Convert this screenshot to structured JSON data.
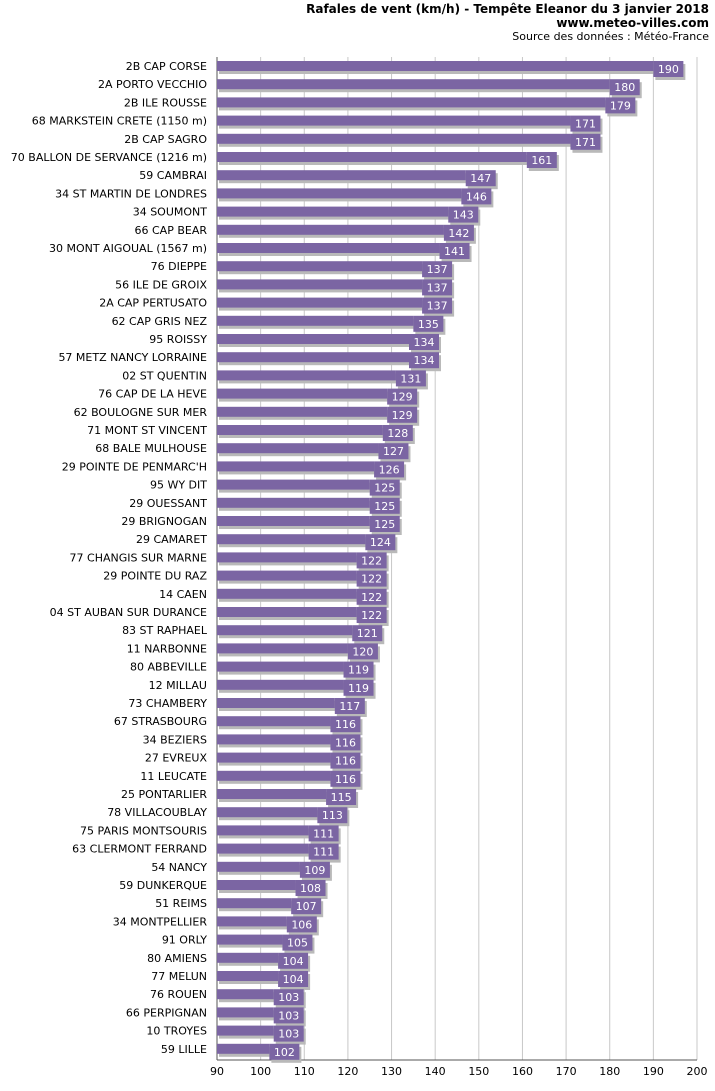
{
  "header": {
    "title": "Rafales de vent (km/h) - Tempête Eleanor du 3 janvier 2018",
    "site": "www.meteo-villes.com",
    "source": "Source des données : Météo-France"
  },
  "colors": {
    "bar": "#7b65a3",
    "bar_shadow": "#b9b9b9",
    "grid": "#c8c8c8",
    "axis": "#555555"
  },
  "chart_data": {
    "type": "bar",
    "orientation": "horizontal",
    "title": "Rafales de vent (km/h) - Tempête Eleanor du 3 janvier 2018",
    "xlim": [
      90,
      200
    ],
    "xticks": [
      90,
      100,
      110,
      120,
      130,
      140,
      150,
      160,
      170,
      180,
      190,
      200
    ],
    "grid": true,
    "categories": [
      "2B CAP CORSE",
      "2A PORTO VECCHIO",
      "2B ILE ROUSSE",
      "68 MARKSTEIN CRETE (1150 m)",
      "2B CAP SAGRO",
      "70 BALLON DE SERVANCE (1216 m)",
      "59 CAMBRAI",
      "34 ST MARTIN DE LONDRES",
      "34 SOUMONT",
      "66 CAP BEAR",
      "30 MONT AIGOUAL (1567 m)",
      "76 DIEPPE",
      "56 ILE DE GROIX",
      "2A CAP PERTUSATO",
      "62 CAP GRIS NEZ",
      "95 ROISSY",
      "57 METZ NANCY LORRAINE",
      "02 ST QUENTIN",
      "76 CAP DE LA HEVE",
      "62 BOULOGNE SUR MER",
      "71 MONT ST VINCENT",
      "68 BALE MULHOUSE",
      "29 POINTE DE PENMARC'H",
      "95 WY DIT",
      "29 OUESSANT",
      "29 BRIGNOGAN",
      "29 CAMARET",
      "77 CHANGIS SUR MARNE",
      "29 POINTE DU RAZ",
      "14 CAEN",
      "04 ST AUBAN SUR DURANCE",
      "83 ST RAPHAEL",
      "11 NARBONNE",
      "80 ABBEVILLE",
      "12 MILLAU",
      "73 CHAMBERY",
      "67 STRASBOURG",
      "34 BEZIERS",
      "27 EVREUX",
      "11 LEUCATE",
      "25 PONTARLIER",
      "78 VILLACOUBLAY",
      "75 PARIS MONTSOURIS",
      "63 CLERMONT FERRAND",
      "54 NANCY",
      "59 DUNKERQUE",
      "51 REIMS",
      "34 MONTPELLIER",
      "91 ORLY",
      "80 AMIENS",
      "77 MELUN",
      "76 ROUEN",
      "66 PERPIGNAN",
      "10 TROYES",
      "59 LILLE"
    ],
    "values": [
      190,
      180,
      179,
      171,
      171,
      161,
      147,
      146,
      143,
      142,
      141,
      137,
      137,
      137,
      135,
      134,
      134,
      131,
      129,
      129,
      128,
      127,
      126,
      125,
      125,
      125,
      124,
      122,
      122,
      122,
      122,
      121,
      120,
      119,
      119,
      117,
      116,
      116,
      116,
      116,
      115,
      113,
      111,
      111,
      109,
      108,
      107,
      106,
      105,
      104,
      104,
      103,
      103,
      103,
      102
    ]
  }
}
